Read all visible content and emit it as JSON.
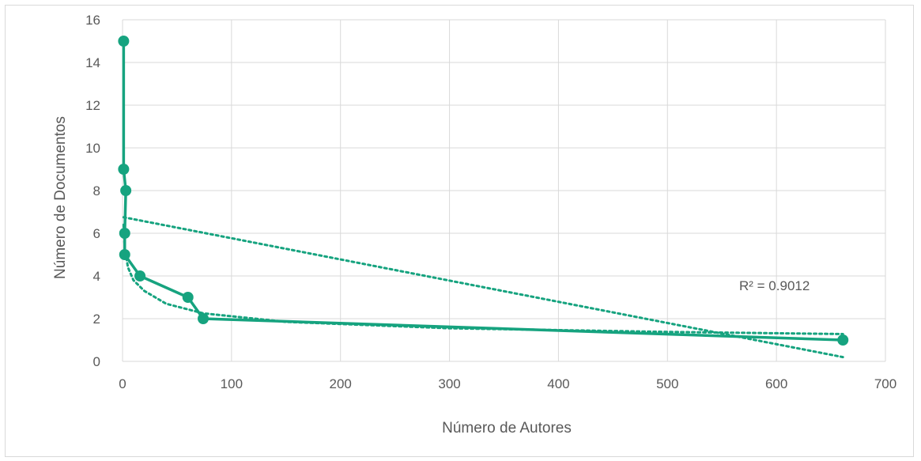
{
  "chart_data": {
    "type": "scatter",
    "xlabel": "Número de Autores",
    "ylabel": "Número de Documentos",
    "xlim": [
      0,
      700
    ],
    "ylim": [
      0,
      16
    ],
    "x_ticks": [
      "0",
      "100",
      "200",
      "300",
      "400",
      "500",
      "600",
      "700"
    ],
    "y_ticks": [
      "0",
      "2",
      "4",
      "6",
      "8",
      "10",
      "12",
      "14",
      "16"
    ],
    "grid": true,
    "series": [
      {
        "style": "solid line with circle markers",
        "color": "#16a37f",
        "points": [
          {
            "x": 1,
            "y": 15
          },
          {
            "x": 1,
            "y": 9
          },
          {
            "x": 3,
            "y": 8
          },
          {
            "x": 2,
            "y": 6
          },
          {
            "x": 2,
            "y": 5
          },
          {
            "x": 16,
            "y": 4
          },
          {
            "x": 60,
            "y": 3
          },
          {
            "x": 74,
            "y": 2
          },
          {
            "x": 661,
            "y": 1
          }
        ]
      }
    ],
    "trendlines": [
      {
        "style": "dotted",
        "kind": "linear",
        "x": [
          1,
          661
        ],
        "y": [
          6.75,
          0.2
        ]
      },
      {
        "style": "dotted",
        "kind": "power",
        "x": [
          1,
          2,
          5,
          10,
          20,
          40,
          74,
          150,
          300,
          500,
          661
        ],
        "y": [
          6.4,
          5.3,
          4.4,
          3.8,
          3.3,
          2.7,
          2.25,
          1.85,
          1.55,
          1.38,
          1.28
        ]
      }
    ],
    "annotations": [
      "R² = 0.9012"
    ]
  }
}
